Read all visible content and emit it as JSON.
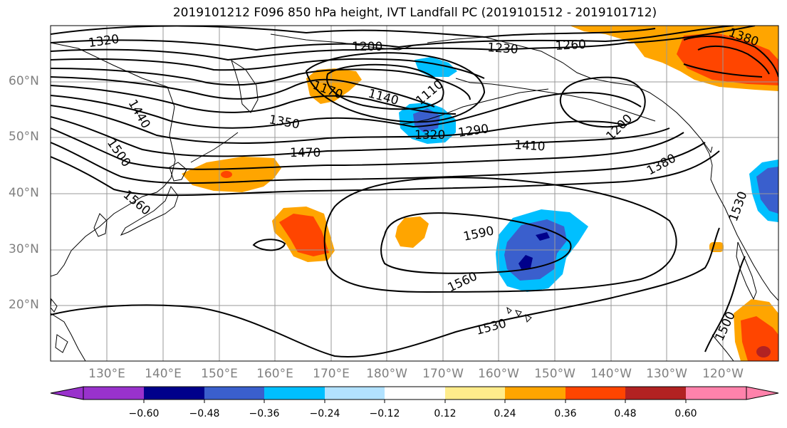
{
  "title": "2019101212 F096 850 hPa height, IVT Landfall PC (2019101512 - 2019101712)",
  "lat_labels": [
    "60°N",
    "50°N",
    "40°N",
    "30°N",
    "20°N"
  ],
  "lon_labels": [
    "130°E",
    "140°E",
    "150°E",
    "160°E",
    "170°E",
    "180°W",
    "170°W",
    "160°W",
    "150°W",
    "140°W",
    "130°W",
    "120°W"
  ],
  "contour_labels": [
    "1320",
    "1200",
    "1230",
    "1260",
    "1380",
    "1440",
    "1170",
    "1140",
    "1110",
    "1350",
    "1320",
    "1290",
    "1200",
    "1500",
    "1470",
    "1410",
    "1380",
    "1560",
    "1590",
    "1560",
    "1530",
    "1530",
    "1500"
  ],
  "colorbar": {
    "tick_labels": [
      "−0.60",
      "−0.48",
      "−0.36",
      "−0.24",
      "−0.12",
      "0.12",
      "0.24",
      "0.36",
      "0.48",
      "0.60"
    ],
    "colors": [
      "#9932cc",
      "#00008b",
      "#3a5fcd",
      "#00bfff",
      "#b2e2ff",
      "#ffffff",
      "#ffec8b",
      "#ffa500",
      "#ff4500",
      "#b22222",
      "#ff82ab"
    ]
  },
  "colors": {
    "contour": "#000000",
    "grid": "#999999",
    "coast": "#000000"
  }
}
